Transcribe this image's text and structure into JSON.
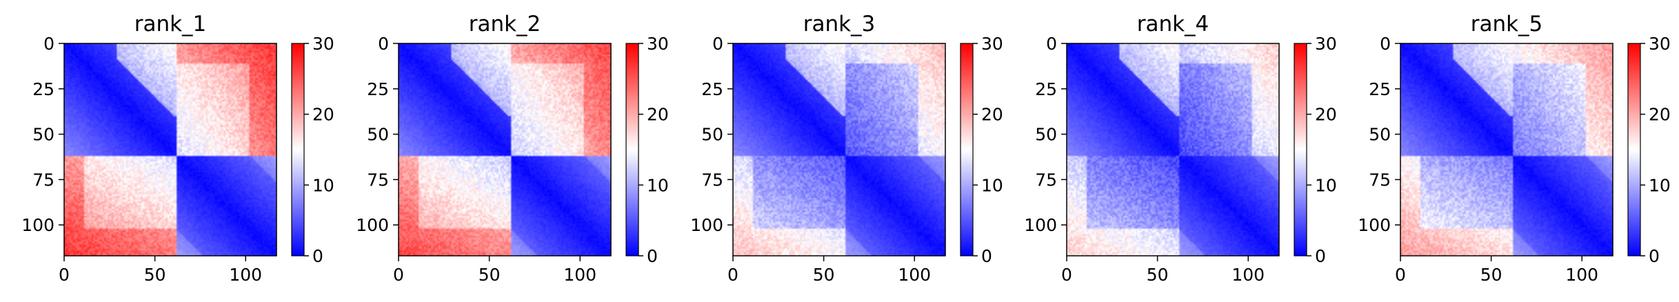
{
  "chart_data": [
    {
      "type": "heatmap",
      "title": "rank_1",
      "n": 117,
      "x_ticks": [
        0,
        50,
        100
      ],
      "y_ticks": [
        0,
        25,
        50,
        75,
        100
      ],
      "colorbar": {
        "min": 0,
        "max": 30,
        "ticks": [
          0,
          10,
          20,
          30
        ],
        "colormap": "bwr"
      },
      "domain_boundary": 62,
      "off_diagonal_level": "high",
      "off_diagonal_value": 25
    },
    {
      "type": "heatmap",
      "title": "rank_2",
      "n": 117,
      "x_ticks": [
        0,
        50,
        100
      ],
      "y_ticks": [
        0,
        25,
        50,
        75,
        100
      ],
      "colorbar": {
        "min": 0,
        "max": 30,
        "ticks": [
          0,
          10,
          20,
          30
        ],
        "colormap": "bwr"
      },
      "domain_boundary": 62,
      "off_diagonal_level": "high",
      "off_diagonal_value": 24
    },
    {
      "type": "heatmap",
      "title": "rank_3",
      "n": 117,
      "x_ticks": [
        0,
        50,
        100
      ],
      "y_ticks": [
        0,
        25,
        50,
        75,
        100
      ],
      "colorbar": {
        "min": 0,
        "max": 30,
        "ticks": [
          0,
          10,
          20,
          30
        ],
        "colormap": "bwr"
      },
      "domain_boundary": 62,
      "off_diagonal_level": "moderate",
      "off_diagonal_value": 17
    },
    {
      "type": "heatmap",
      "title": "rank_4",
      "n": 117,
      "x_ticks": [
        0,
        50,
        100
      ],
      "y_ticks": [
        0,
        25,
        50,
        75,
        100
      ],
      "colorbar": {
        "min": 0,
        "max": 30,
        "ticks": [
          0,
          10,
          20,
          30
        ],
        "colormap": "bwr"
      },
      "domain_boundary": 62,
      "off_diagonal_level": "moderate",
      "off_diagonal_value": 16
    },
    {
      "type": "heatmap",
      "title": "rank_5",
      "n": 117,
      "x_ticks": [
        0,
        50,
        100
      ],
      "y_ticks": [
        0,
        25,
        50,
        75,
        100
      ],
      "colorbar": {
        "min": 0,
        "max": 30,
        "ticks": [
          0,
          10,
          20,
          30
        ],
        "colormap": "bwr"
      },
      "domain_boundary": 62,
      "off_diagonal_level": "moderate",
      "off_diagonal_value": 19
    }
  ]
}
